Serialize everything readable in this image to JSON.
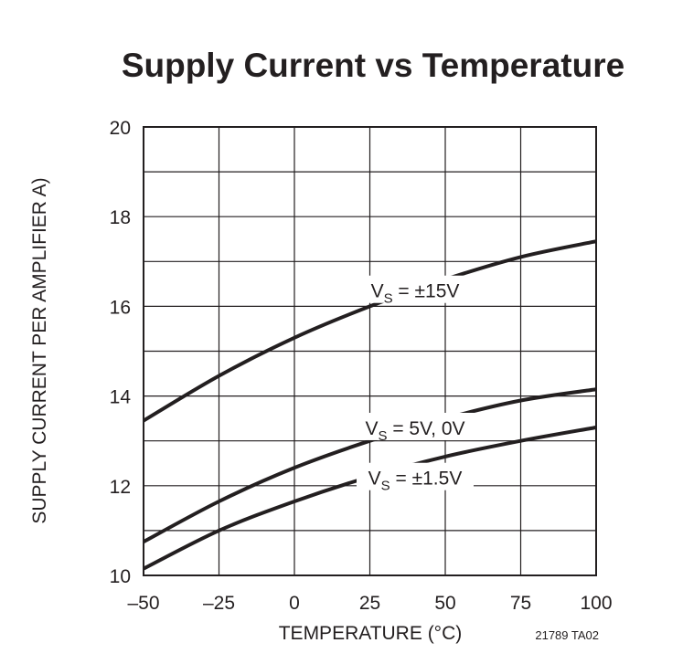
{
  "chart_data": {
    "type": "line",
    "title": "Supply Current vs Temperature",
    "xlabel": "TEMPERATURE (°C)",
    "ylabel": "SUPPLY CURRENT PER AMPLIFIER A)",
    "xlim": [
      -50,
      100
    ],
    "ylim": [
      10,
      20
    ],
    "xticks": [
      -50,
      -25,
      0,
      25,
      50,
      75,
      100
    ],
    "xtick_labels": [
      "–50",
      "–25",
      "0",
      "25",
      "50",
      "75",
      "100"
    ],
    "yticks": [
      10,
      12,
      14,
      16,
      18,
      20
    ],
    "ytick_labels": [
      "10",
      "12",
      "14",
      "16",
      "18",
      "20"
    ],
    "grid": true,
    "x": [
      -50,
      -25,
      0,
      25,
      50,
      75,
      100
    ],
    "series": [
      {
        "name": "VS = ±15V",
        "label_main": "V",
        "label_sub": "S",
        "label_rest": " = ±15V",
        "label_at": 40,
        "values": [
          13.45,
          14.45,
          15.3,
          16.0,
          16.6,
          17.1,
          17.45
        ]
      },
      {
        "name": "VS = 5V, 0V",
        "label_main": "V",
        "label_sub": "S",
        "label_rest": " = 5V, 0V",
        "label_at": 40,
        "values": [
          10.75,
          11.65,
          12.4,
          13.0,
          13.5,
          13.9,
          14.15
        ]
      },
      {
        "name": "VS = ±1.5V",
        "label_main": "V",
        "label_sub": "S",
        "label_rest": " = ±1.5V",
        "label_at": 40,
        "values": [
          10.15,
          11.0,
          11.65,
          12.2,
          12.65,
          13.0,
          13.3
        ]
      }
    ],
    "annotation": "21789 TA02"
  }
}
